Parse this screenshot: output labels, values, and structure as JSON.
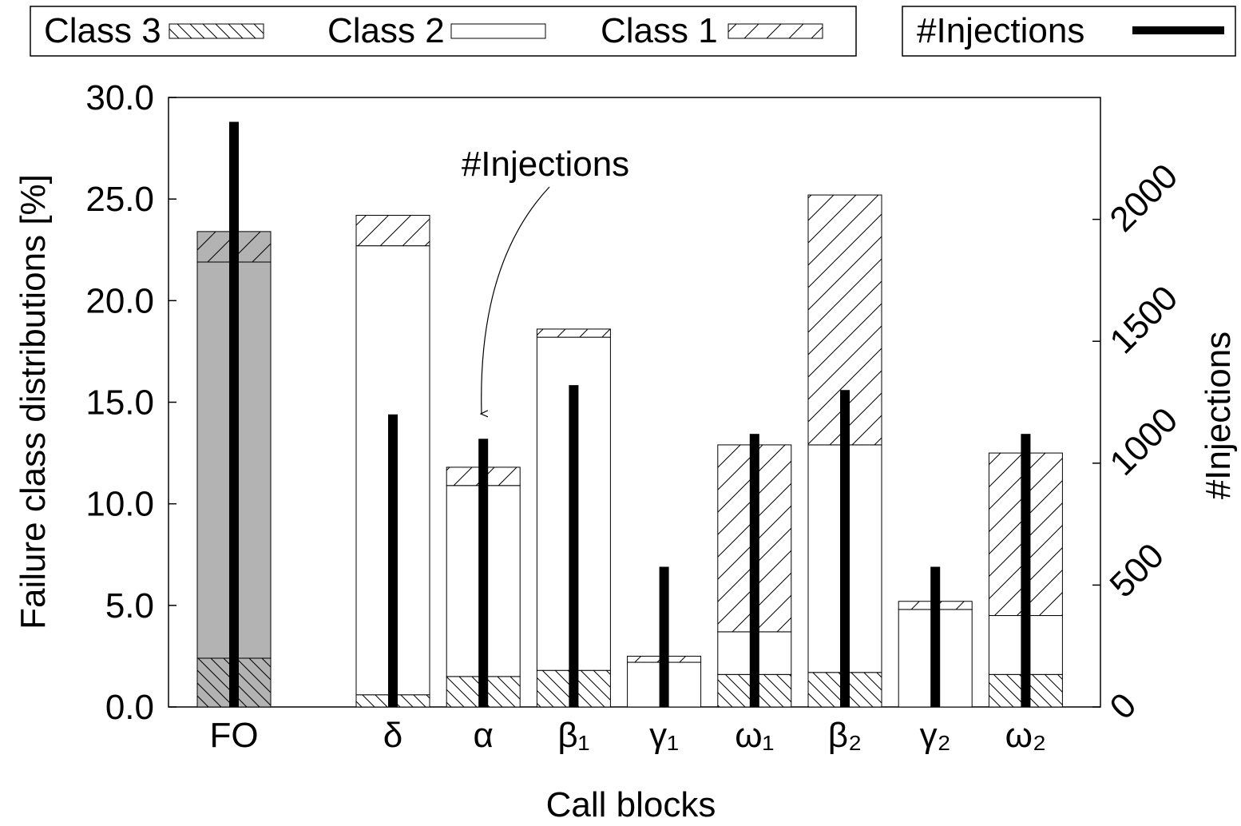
{
  "chart_data": {
    "type": "stacked-bar",
    "x_label": "Call blocks",
    "y_label": "Failure class distributions [%]",
    "y2_label": "#Injections",
    "annotation": "#Injections",
    "categories": [
      "FO",
      "δ",
      "α",
      "β₁",
      "γ₁",
      "ω₁",
      "β₂",
      "γ₂",
      "ω₂"
    ],
    "category_colors": [
      "#b3b3b3",
      "#ffffff",
      "#ffffff",
      "#ffffff",
      "#ffffff",
      "#ffffff",
      "#ffffff",
      "#ffffff",
      "#ffffff"
    ],
    "series": [
      {
        "name": "Class 3",
        "hatch": "backslash",
        "values": [
          2.4,
          0.6,
          1.5,
          1.8,
          0,
          1.6,
          1.7,
          0,
          1.6
        ]
      },
      {
        "name": "Class 2",
        "hatch": "none",
        "values": [
          19.5,
          22.1,
          9.4,
          16.4,
          2.2,
          2.1,
          11.2,
          4.8,
          2.9
        ]
      },
      {
        "name": "Class 1",
        "hatch": "slash",
        "values": [
          1.5,
          1.5,
          0.9,
          0.4,
          0.3,
          9.2,
          12.3,
          0.4,
          8.0
        ]
      },
      {
        "name": "#Injections",
        "axis": "y2",
        "color": "#000000",
        "values": [
          2400,
          1200,
          1100,
          1320,
          575,
          1120,
          1300,
          575,
          1120
        ]
      }
    ],
    "ylim": [
      0,
      30
    ],
    "yticks": [
      {
        "value": 0,
        "label": "0.0"
      },
      {
        "value": 5,
        "label": "5.0"
      },
      {
        "value": 10,
        "label": "10.0"
      },
      {
        "value": 15,
        "label": "15.0"
      },
      {
        "value": 20,
        "label": "20.0"
      },
      {
        "value": 25,
        "label": "25.0"
      },
      {
        "value": 30,
        "label": "30.0"
      }
    ],
    "y2lim": [
      0,
      2500
    ],
    "y2ticks": [
      0,
      500,
      1000,
      1500,
      2000
    ]
  }
}
